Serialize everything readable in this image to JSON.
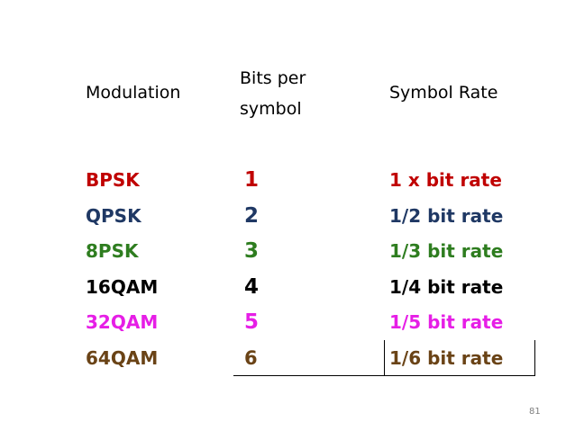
{
  "table": {
    "headers": {
      "modulation": "Modulation",
      "bits_per_symbol": "Bits per symbol",
      "symbol_rate": "Symbol Rate"
    },
    "rows": [
      {
        "modulation": "BPSK",
        "bits": "1",
        "rate": "1 x bit rate",
        "color": "#c00000"
      },
      {
        "modulation": "QPSK",
        "bits": "2",
        "rate": "1/2 bit rate",
        "color": "#1f3864"
      },
      {
        "modulation": "8PSK",
        "bits": "3",
        "rate": "1/3 bit rate",
        "color": "#2e7d1f"
      },
      {
        "modulation": "16QAM",
        "bits": "4",
        "rate": "1/4 bit rate",
        "color": "#000000"
      },
      {
        "modulation": "32QAM",
        "bits": "5",
        "rate": "1/5 bit rate",
        "color": "#e61ee6"
      },
      {
        "modulation": "64QAM",
        "bits": "6",
        "rate": "1/6 bit rate",
        "color": "#6a4316"
      }
    ]
  },
  "page_number": "81"
}
